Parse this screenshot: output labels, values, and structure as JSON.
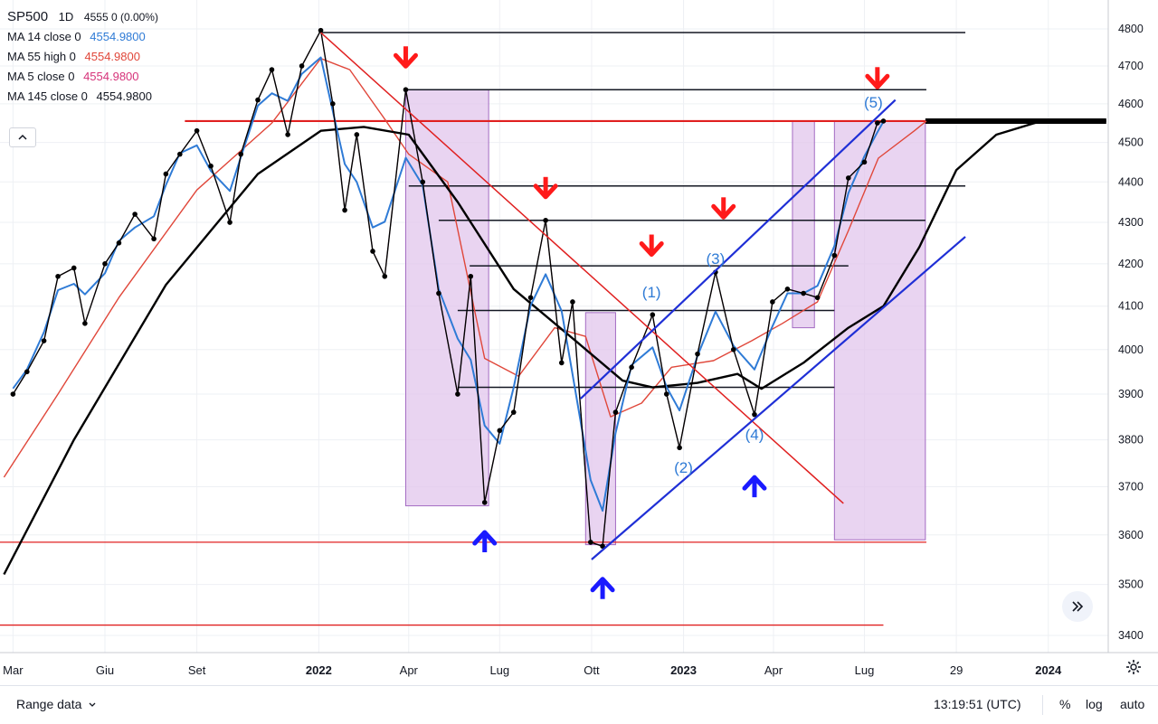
{
  "legend": {
    "symbol": "SP500",
    "interval": "1D",
    "quote": "4555  0 (0.00%)",
    "mas": [
      {
        "label": "MA 14 close 0",
        "value": "4554.9800",
        "color": "#2f7bd6"
      },
      {
        "label": "MA 55 high 0",
        "value": "4554.9800",
        "color": "#e0473a"
      },
      {
        "label": "MA 5 close 0",
        "value": "4554.9800",
        "color": "#d6337a"
      },
      {
        "label": "MA 145 close 0",
        "value": "4554.9800",
        "color": "#131722"
      }
    ],
    "collapse_icon": "chevron-up-icon"
  },
  "bottom": {
    "range_label": "Range data",
    "range_icon": "chevron-down-icon",
    "time": "13:19:51 (UTC)",
    "pct": "%",
    "log": "log",
    "auto": "auto"
  },
  "chart_data": {
    "type": "line",
    "x_tick_labels": [
      "Mar",
      "Giu",
      "Set",
      "2022",
      "Apr",
      "Lug",
      "Ott",
      "2023",
      "Apr",
      "Lug",
      "29",
      "2024"
    ],
    "y_tick_labels": [
      "4800",
      "4700",
      "4600",
      "4500",
      "4400",
      "4300",
      "4200",
      "4100",
      "4000",
      "3900",
      "3800",
      "3700",
      "3600",
      "3500",
      "3400"
    ],
    "ylim": [
      3360,
      4840
    ],
    "y_scale": "log",
    "last_value": 4555,
    "colors": {
      "price": "#000000",
      "ma14": "#2f7bd6",
      "ma55": "#e0473a",
      "ma5": "#d6337a",
      "ma145": "#000000",
      "down_arrow": "#ff1a1a",
      "up_arrow": "#1a1aff",
      "box_fill": "#e1c6ec",
      "trend_blue": "#1f2fd6",
      "trend_red": "#e02020"
    },
    "wave_labels": [
      "(1)",
      "(2)",
      "(3)",
      "(4)",
      "(5)"
    ],
    "series": [
      {
        "name": "SP500",
        "points": [
          [
            "2021-03-01",
            3900
          ],
          [
            "2021-03-15",
            3950
          ],
          [
            "2021-04-01",
            4020
          ],
          [
            "2021-04-15",
            4170
          ],
          [
            "2021-05-01",
            4190
          ],
          [
            "2021-05-12",
            4060
          ],
          [
            "2021-06-01",
            4200
          ],
          [
            "2021-06-15",
            4250
          ],
          [
            "2021-07-01",
            4320
          ],
          [
            "2021-07-20",
            4260
          ],
          [
            "2021-08-01",
            4420
          ],
          [
            "2021-08-15",
            4470
          ],
          [
            "2021-09-01",
            4530
          ],
          [
            "2021-09-15",
            4440
          ],
          [
            "2021-10-04",
            4300
          ],
          [
            "2021-10-15",
            4470
          ],
          [
            "2021-11-01",
            4610
          ],
          [
            "2021-11-15",
            4690
          ],
          [
            "2021-12-01",
            4520
          ],
          [
            "2021-12-15",
            4700
          ],
          [
            "2022-01-03",
            4796
          ],
          [
            "2022-01-15",
            4600
          ],
          [
            "2022-01-27",
            4330
          ],
          [
            "2022-02-08",
            4520
          ],
          [
            "2022-02-24",
            4230
          ],
          [
            "2022-03-08",
            4170
          ],
          [
            "2022-03-29",
            4637
          ],
          [
            "2022-04-15",
            4400
          ],
          [
            "2022-05-01",
            4130
          ],
          [
            "2022-05-20",
            3900
          ],
          [
            "2022-06-02",
            4170
          ],
          [
            "2022-06-16",
            3667
          ],
          [
            "2022-07-01",
            3820
          ],
          [
            "2022-07-15",
            3860
          ],
          [
            "2022-08-01",
            4120
          ],
          [
            "2022-08-16",
            4305
          ],
          [
            "2022-09-01",
            3970
          ],
          [
            "2022-09-12",
            4110
          ],
          [
            "2022-09-30",
            3585
          ],
          [
            "2022-10-12",
            3577
          ],
          [
            "2022-10-25",
            3860
          ],
          [
            "2022-11-10",
            3960
          ],
          [
            "2022-12-01",
            4080
          ],
          [
            "2022-12-15",
            3900
          ],
          [
            "2022-12-28",
            3783
          ],
          [
            "2023-01-15",
            3990
          ],
          [
            "2023-02-02",
            4180
          ],
          [
            "2023-02-20",
            4000
          ],
          [
            "2023-03-13",
            3855
          ],
          [
            "2023-03-31",
            4110
          ],
          [
            "2023-04-15",
            4140
          ],
          [
            "2023-05-01",
            4130
          ],
          [
            "2023-05-15",
            4120
          ],
          [
            "2023-06-01",
            4220
          ],
          [
            "2023-06-15",
            4410
          ],
          [
            "2023-07-01",
            4450
          ],
          [
            "2023-07-14",
            4550
          ],
          [
            "2023-07-20",
            4555
          ]
        ]
      },
      {
        "name": "MA 145",
        "points": [
          [
            "2021-02-20",
            3520
          ],
          [
            "2021-05-01",
            3800
          ],
          [
            "2021-08-01",
            4150
          ],
          [
            "2021-11-01",
            4420
          ],
          [
            "2022-01-03",
            4530
          ],
          [
            "2022-02-15",
            4540
          ],
          [
            "2022-04-01",
            4520
          ],
          [
            "2022-05-20",
            4350
          ],
          [
            "2022-07-15",
            4140
          ],
          [
            "2022-09-15",
            4020
          ],
          [
            "2022-11-01",
            3930
          ],
          [
            "2022-12-01",
            3915
          ],
          [
            "2023-01-15",
            3925
          ],
          [
            "2023-02-24",
            3945
          ],
          [
            "2023-03-20",
            3912
          ],
          [
            "2023-05-01",
            3970
          ],
          [
            "2023-06-15",
            4050
          ],
          [
            "2023-07-20",
            4100
          ],
          [
            "2023-08-25",
            4240
          ],
          [
            "2023-10-01",
            4430
          ],
          [
            "2023-11-10",
            4520
          ],
          [
            "2023-12-25",
            4555
          ],
          [
            "2024-02-28",
            4555
          ]
        ]
      },
      {
        "name": "MA 55",
        "points": [
          [
            "2021-02-20",
            3720
          ],
          [
            "2021-04-15",
            3900
          ],
          [
            "2021-06-15",
            4120
          ],
          [
            "2021-09-01",
            4380
          ],
          [
            "2021-11-15",
            4550
          ],
          [
            "2022-01-03",
            4720
          ],
          [
            "2022-02-01",
            4690
          ],
          [
            "2022-03-08",
            4560
          ],
          [
            "2022-04-01",
            4470
          ],
          [
            "2022-05-10",
            4400
          ],
          [
            "2022-06-16",
            3980
          ],
          [
            "2022-07-20",
            3940
          ],
          [
            "2022-08-25",
            4050
          ],
          [
            "2022-09-25",
            4030
          ],
          [
            "2022-10-20",
            3850
          ],
          [
            "2022-11-20",
            3880
          ],
          [
            "2022-12-20",
            3960
          ],
          [
            "2023-01-31",
            3975
          ],
          [
            "2023-03-10",
            4020
          ],
          [
            "2023-04-10",
            4060
          ],
          [
            "2023-05-15",
            4110
          ],
          [
            "2023-06-15",
            4280
          ],
          [
            "2023-07-15",
            4460
          ],
          [
            "2023-08-20",
            4530
          ],
          [
            "2023-09-01",
            4555
          ]
        ]
      }
    ],
    "horizontal_levels": [
      4790,
      4637,
      4555,
      4390,
      4305,
      4195,
      4090,
      3915,
      3585,
      3420
    ],
    "annotations": [
      "down arrows at peaks",
      "up arrows at troughs",
      "purple rectangles",
      "blue trend channel",
      "red trend line"
    ]
  }
}
